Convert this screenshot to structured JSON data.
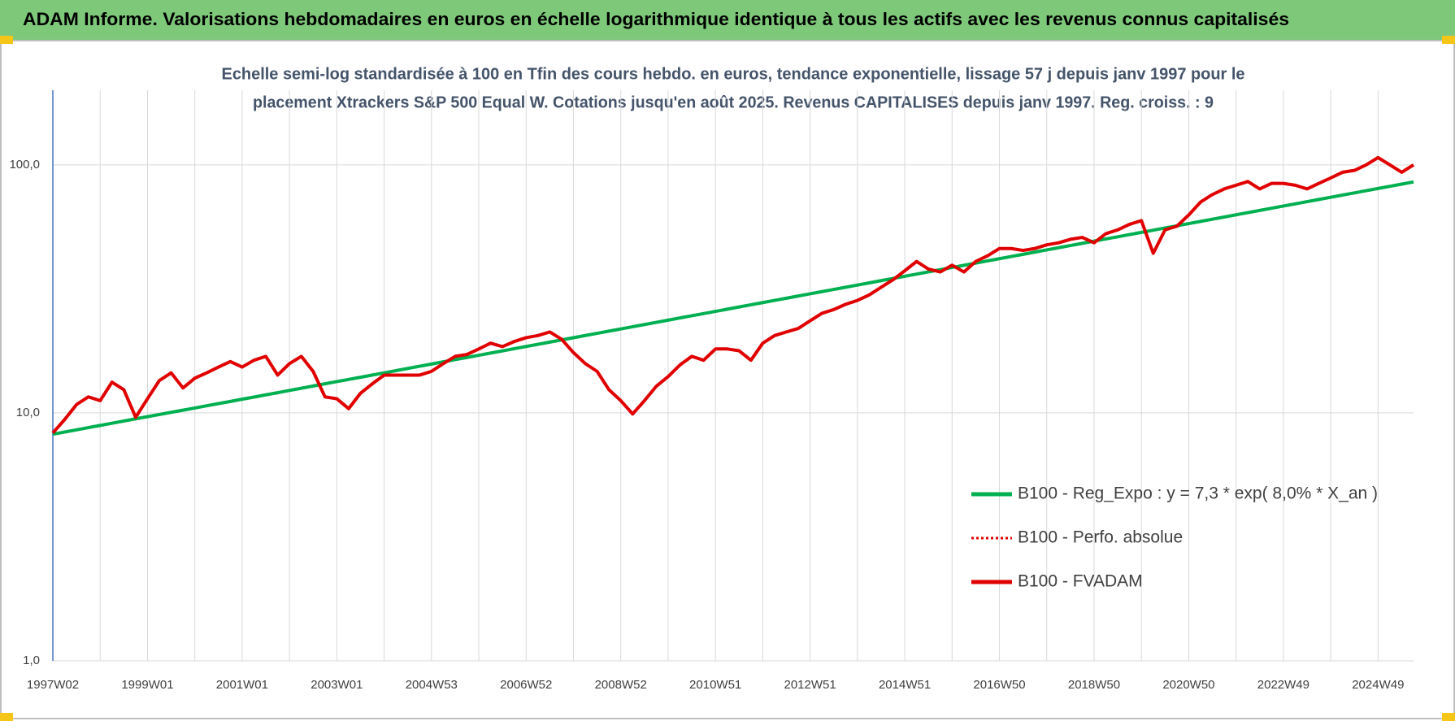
{
  "chart_data": {
    "type": "line",
    "title": "ADAM Informe. Valorisations hebdomadaires en euros en échelle logarithmique identique à tous les actifs avec les revenus connus capitalisés",
    "subtitle": [
      "Echelle semi-log standardisée à 100 en Tfin des cours hebdo. en euros, tendance exponentielle, lissage 57 j depuis janv 1997 pour le",
      "placement Xtrackers S&P 500 Equal W. Cotations jusqu'en août 2025. Revenus CAPITALISES depuis janv 1997. Reg. croiss. : 9"
    ],
    "log_scale": true,
    "grid": true,
    "legend": "lower right",
    "ylim": [
      1,
      200
    ],
    "yticks": [
      {
        "value": 1,
        "label": "1,0"
      },
      {
        "value": 10,
        "label": "10,0"
      },
      {
        "value": 100,
        "label": "100,0"
      }
    ],
    "categories": [
      "1997W02",
      null,
      null,
      null,
      null,
      null,
      null,
      null,
      "1999W01",
      null,
      null,
      null,
      null,
      null,
      null,
      null,
      "2001W01",
      null,
      null,
      null,
      null,
      null,
      null,
      null,
      "2003W01",
      null,
      null,
      null,
      null,
      null,
      null,
      null,
      "2004W53",
      null,
      null,
      null,
      null,
      null,
      null,
      null,
      "2006W52",
      null,
      null,
      null,
      null,
      null,
      null,
      null,
      "2008W52",
      null,
      null,
      null,
      null,
      null,
      null,
      null,
      "2010W51",
      null,
      null,
      null,
      null,
      null,
      null,
      null,
      "2012W51",
      null,
      null,
      null,
      null,
      null,
      null,
      null,
      "2014W51",
      null,
      null,
      null,
      null,
      null,
      null,
      null,
      "2016W50",
      null,
      null,
      null,
      null,
      null,
      null,
      null,
      "2018W50",
      null,
      null,
      null,
      null,
      null,
      null,
      null,
      "2020W50",
      null,
      null,
      null,
      null,
      null,
      null,
      null,
      "2022W49",
      null,
      null,
      null,
      null,
      null,
      null,
      null,
      "2024W49",
      null,
      null,
      null
    ],
    "series": [
      {
        "name": "B100 - Reg_Expo : y = 7,3 * exp( 8,0% *  X_an )",
        "color": "#00b050",
        "style": "solid",
        "values": [
          8.2,
          8.37,
          8.54,
          8.72,
          8.9,
          9.08,
          9.27,
          9.46,
          9.65,
          9.85,
          10.05,
          10.25,
          10.46,
          10.68,
          10.9,
          11.12,
          11.35,
          11.58,
          11.82,
          12.06,
          12.32,
          12.57,
          12.83,
          13.1,
          13.37,
          13.64,
          13.92,
          14.21,
          14.5,
          14.8,
          15.11,
          15.42,
          15.73,
          16.06,
          16.39,
          16.73,
          17.07,
          17.42,
          17.78,
          18.15,
          18.52,
          18.9,
          19.29,
          19.69,
          20.09,
          20.51,
          20.93,
          21.36,
          21.8,
          22.25,
          22.71,
          23.18,
          23.65,
          24.14,
          24.64,
          25.14,
          25.66,
          26.19,
          26.73,
          27.28,
          27.84,
          28.41,
          29.0,
          29.6,
          30.21,
          30.83,
          31.46,
          32.11,
          32.77,
          33.44,
          34.13,
          34.83,
          35.55,
          36.28,
          37.03,
          37.79,
          38.57,
          39.36,
          40.17,
          41.0,
          41.85,
          42.71,
          43.59,
          44.49,
          45.4,
          46.34,
          47.29,
          48.26,
          49.26,
          50.27,
          51.3,
          52.36,
          53.43,
          54.53,
          55.66,
          56.8,
          57.97,
          59.16,
          60.38,
          61.62,
          62.9,
          64.19,
          65.51,
          66.86,
          68.24,
          69.64,
          71.07,
          72.54,
          74.03,
          75.56,
          77.11,
          78.7,
          80.32,
          81.97,
          83.66,
          85.38
        ]
      },
      {
        "name": "B100 - Perfo. absolue",
        "color": "#e00000",
        "style": "dotted",
        "values": [
          8.3,
          9.4,
          10.8,
          11.6,
          11.2,
          13.3,
          12.4,
          9.6,
          11.4,
          13.5,
          14.5,
          12.6,
          13.8,
          14.5,
          15.3,
          16.1,
          15.3,
          16.3,
          16.9,
          14.2,
          15.8,
          16.9,
          14.7,
          11.6,
          11.4,
          10.4,
          12.0,
          13.1,
          14.2,
          14.2,
          14.2,
          14.2,
          14.7,
          15.8,
          16.9,
          17.2,
          18.1,
          19.1,
          18.5,
          19.4,
          20.1,
          20.5,
          21.2,
          19.8,
          17.5,
          15.8,
          14.7,
          12.4,
          11.2,
          9.9,
          11.2,
          12.8,
          14.0,
          15.6,
          16.9,
          16.3,
          18.1,
          18.1,
          17.8,
          16.3,
          19.1,
          20.5,
          21.2,
          21.9,
          23.5,
          25.2,
          26.1,
          27.4,
          28.4,
          29.9,
          32.1,
          34.4,
          37.4,
          40.8,
          38.0,
          37.0,
          39.4,
          37.0,
          40.8,
          43.0,
          46.0,
          46.0,
          45.2,
          46.0,
          47.6,
          48.5,
          50.1,
          51.0,
          48.5,
          52.8,
          54.7,
          57.6,
          59.6,
          44.0,
          54.7,
          56.6,
          62.8,
          70.8,
          75.9,
          80.0,
          82.8,
          85.7,
          80.0,
          84.2,
          84.2,
          82.8,
          80.0,
          84.2,
          88.6,
          93.4,
          95.0,
          100,
          107,
          100,
          93.4,
          100
        ]
      },
      {
        "name": "B100 - FVADAM",
        "color": "#e00000",
        "style": "solid",
        "values": [
          8.3,
          9.4,
          10.8,
          11.6,
          11.2,
          13.3,
          12.4,
          9.6,
          11.4,
          13.5,
          14.5,
          12.6,
          13.8,
          14.5,
          15.3,
          16.1,
          15.3,
          16.3,
          16.9,
          14.2,
          15.8,
          16.9,
          14.7,
          11.6,
          11.4,
          10.4,
          12.0,
          13.1,
          14.2,
          14.2,
          14.2,
          14.2,
          14.7,
          15.8,
          16.9,
          17.2,
          18.1,
          19.1,
          18.5,
          19.4,
          20.1,
          20.5,
          21.2,
          19.8,
          17.5,
          15.8,
          14.7,
          12.4,
          11.2,
          9.9,
          11.2,
          12.8,
          14.0,
          15.6,
          16.9,
          16.3,
          18.1,
          18.1,
          17.8,
          16.3,
          19.1,
          20.5,
          21.2,
          21.9,
          23.5,
          25.2,
          26.1,
          27.4,
          28.4,
          29.9,
          32.1,
          34.4,
          37.4,
          40.8,
          38.0,
          37.0,
          39.4,
          37.0,
          40.8,
          43.0,
          46.0,
          46.0,
          45.2,
          46.0,
          47.6,
          48.5,
          50.1,
          51.0,
          48.5,
          52.8,
          54.7,
          57.6,
          59.6,
          44.0,
          54.7,
          56.6,
          62.8,
          70.8,
          75.9,
          80.0,
          82.8,
          85.7,
          80.0,
          84.2,
          84.2,
          82.8,
          80.0,
          84.2,
          88.6,
          93.4,
          95.0,
          100,
          107,
          100,
          93.4,
          100
        ]
      }
    ]
  }
}
